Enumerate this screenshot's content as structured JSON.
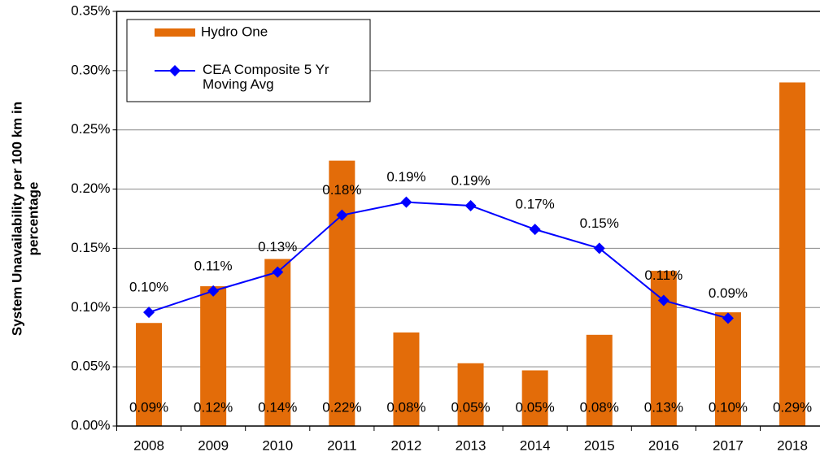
{
  "chart_data": {
    "type": "bar_line",
    "ylabel": [
      "System Unavailability per 100 km in",
      "percentage"
    ],
    "categories": [
      "2008",
      "2009",
      "2010",
      "2011",
      "2012",
      "2013",
      "2014",
      "2015",
      "2016",
      "2017",
      "2018"
    ],
    "series": [
      {
        "name": "Hydro One",
        "type": "bar",
        "color": "#e36c09",
        "values": [
          0.087,
          0.118,
          0.141,
          0.224,
          0.079,
          0.053,
          0.047,
          0.077,
          0.131,
          0.096,
          0.29
        ],
        "value_labels": [
          "0.09%",
          "0.12%",
          "0.14%",
          "0.22%",
          "0.08%",
          "0.05%",
          "0.05%",
          "0.08%",
          "0.13%",
          "0.10%",
          "0.29%"
        ]
      },
      {
        "name": "CEA Composite 5 Yr Moving Avg",
        "type": "line",
        "color": "#0000ff",
        "values": [
          0.096,
          0.114,
          0.13,
          0.178,
          0.189,
          0.186,
          0.166,
          0.15,
          0.106,
          0.091,
          null
        ],
        "value_labels": [
          "0.10%",
          "0.11%",
          "0.13%",
          "0.18%",
          "0.19%",
          "0.19%",
          "0.17%",
          "0.15%",
          "0.11%",
          "0.09%",
          null
        ]
      }
    ],
    "ylim": [
      0,
      0.35
    ],
    "yticks": [
      {
        "value": 0,
        "label": "0.00%"
      },
      {
        "value": 0.05,
        "label": "0.05%"
      },
      {
        "value": 0.1,
        "label": "0.10%"
      },
      {
        "value": 0.15,
        "label": "0.15%"
      },
      {
        "value": 0.2,
        "label": "0.20%"
      },
      {
        "value": 0.25,
        "label": "0.25%"
      },
      {
        "value": 0.3,
        "label": "0.30%"
      },
      {
        "value": 0.35,
        "label": "0.35%"
      }
    ],
    "grid": true
  }
}
